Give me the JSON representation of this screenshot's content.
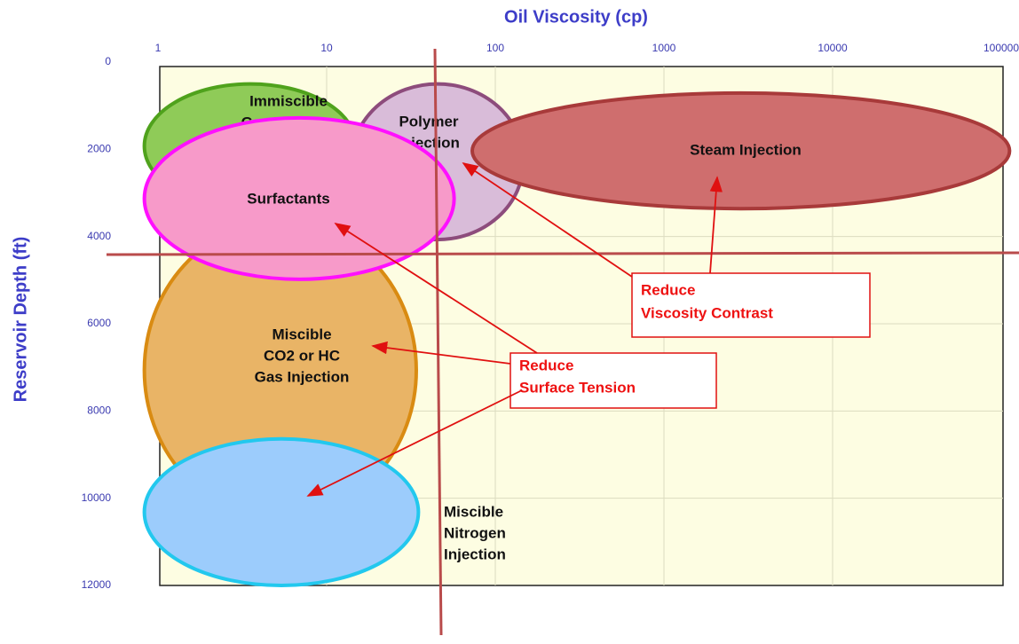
{
  "chart_data": {
    "type": "region",
    "title": "Oil Viscosity (cp)",
    "y_label": "Reservoir Depth (ft)",
    "xscale": "log",
    "xlim": [
      1,
      100000
    ],
    "xticks": [
      1,
      10,
      100,
      1000,
      10000,
      100000
    ],
    "ylim": [
      0,
      12000
    ],
    "yticks": [
      0,
      2000,
      4000,
      6000,
      8000,
      10000,
      12000
    ],
    "y_inverted": true,
    "grid": true,
    "regions": [
      {
        "label": [
          "Miscible",
          "CO2 or HC",
          "Gas Injection"
        ],
        "color": "#e9b466",
        "border": "#d98b12",
        "x_range": [
          0.83,
          34
        ],
        "y_range": [
          3660,
          10470
        ]
      },
      {
        "label": [
          "Immiscible",
          "Gas Injection"
        ],
        "color": "#8fcb58",
        "border": "#4fa21c",
        "x_range": [
          0.83,
          15
        ],
        "y_range": [
          500,
          3350
        ]
      },
      {
        "label": [
          "Polymer",
          "Injection"
        ],
        "color": "#d9bcd9",
        "border": "#8d4c7c",
        "x_range": [
          14,
          147
        ],
        "y_range": [
          500,
          4070
        ]
      },
      {
        "label": [
          "Steam Injection"
        ],
        "color": "#cf6e6e",
        "border": "#a83a3a",
        "x_range": [
          73,
          112000
        ],
        "y_range": [
          710,
          3360
        ]
      },
      {
        "label": [
          "Surfactants"
        ],
        "color": "#f79ac9",
        "border": "#ff10ff",
        "x_range": [
          0.83,
          57
        ],
        "y_range": [
          1280,
          4980
        ]
      },
      {
        "label": [
          "Miscible",
          "Nitrogen",
          "Injection"
        ],
        "color": "#9cccfc",
        "border": "#22c8ee",
        "x_range": [
          0.83,
          35
        ],
        "y_range": [
          8640,
          12000
        ]
      }
    ],
    "annotations": [
      [
        "Reduce",
        "Viscosity Contrast"
      ],
      [
        "Reduce",
        "Surface Tension"
      ]
    ]
  }
}
